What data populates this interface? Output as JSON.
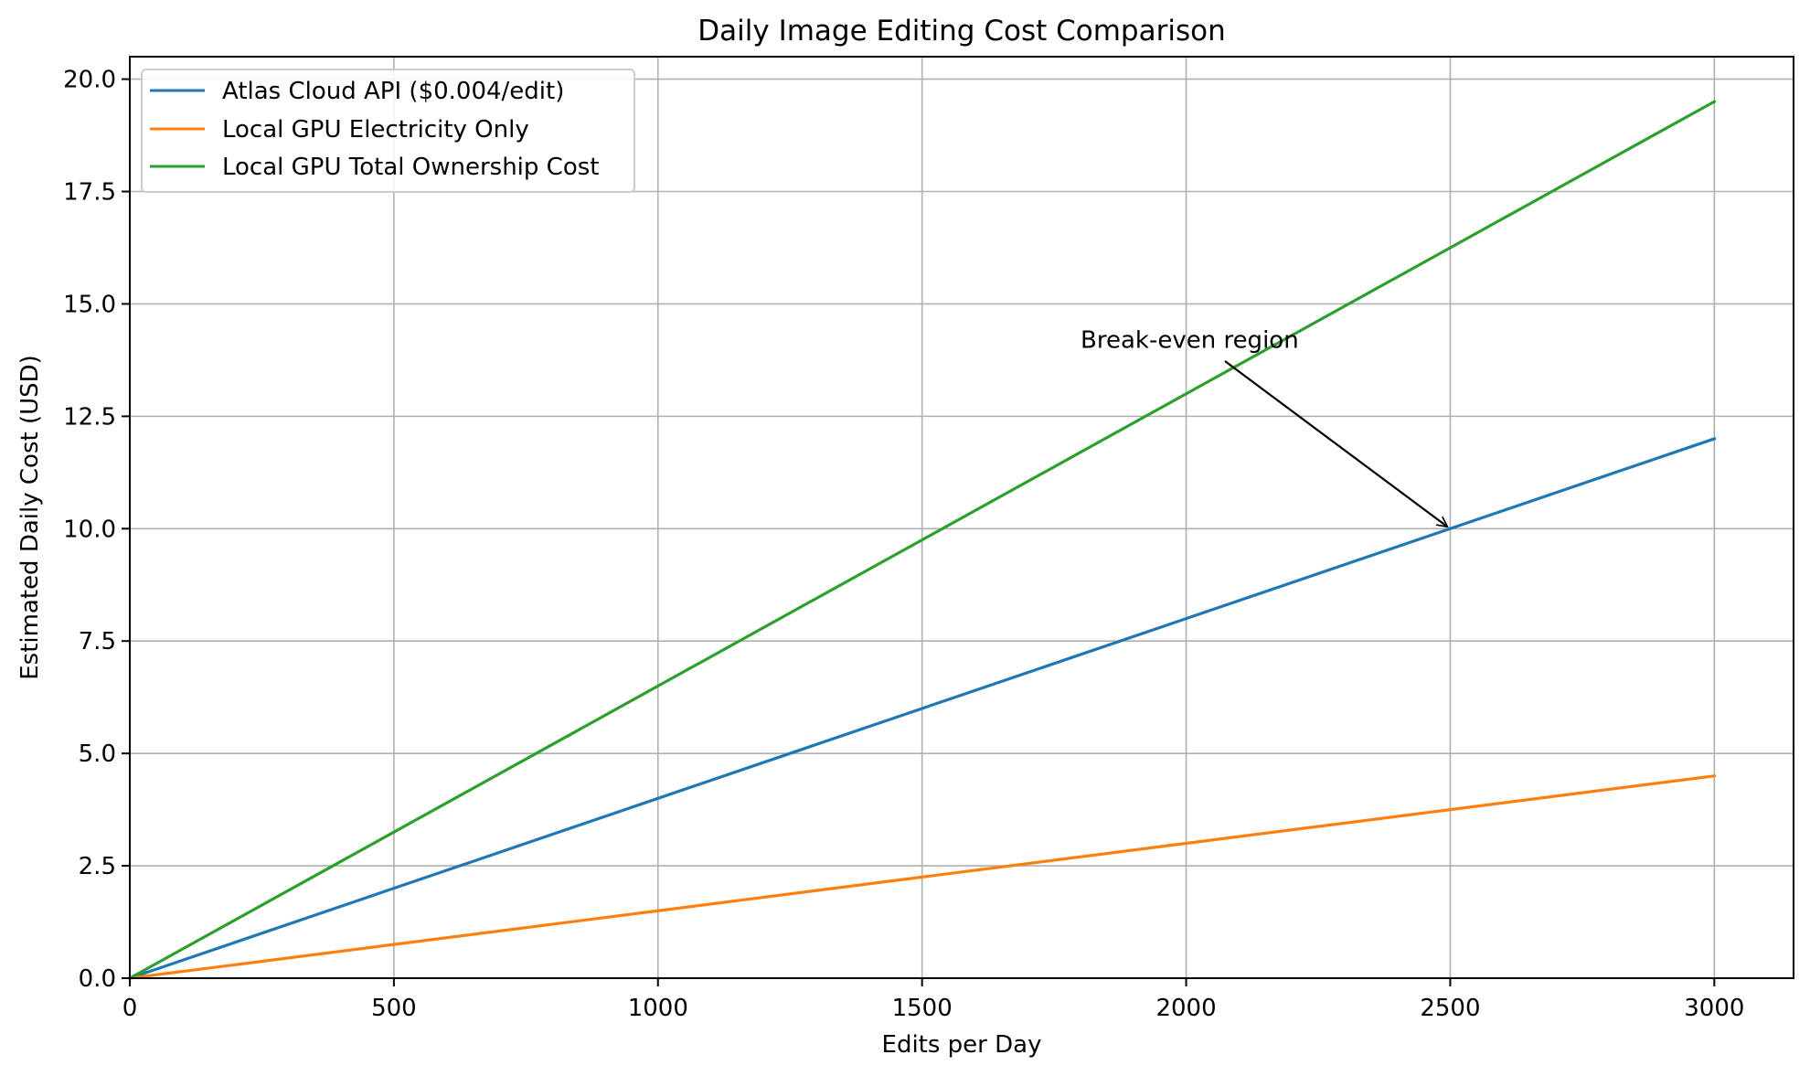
{
  "chart_data": {
    "type": "line",
    "title": "Daily Image Editing Cost Comparison",
    "xlabel": "Edits per Day",
    "ylabel": "Estimated Daily Cost (USD)",
    "xlim": [
      0,
      3150
    ],
    "ylim": [
      0,
      20.5
    ],
    "x_ticks": [
      0,
      500,
      1000,
      1500,
      2000,
      2500,
      3000
    ],
    "y_ticks": [
      0.0,
      2.5,
      5.0,
      7.5,
      10.0,
      12.5,
      15.0,
      17.5,
      20.0
    ],
    "x_tick_labels": [
      "0",
      "500",
      "1000",
      "1500",
      "2000",
      "2500",
      "3000"
    ],
    "y_tick_labels": [
      "0.0",
      "2.5",
      "5.0",
      "7.5",
      "10.0",
      "12.5",
      "15.0",
      "17.5",
      "20.0"
    ],
    "grid": true,
    "legend_position": "upper-left",
    "series": [
      {
        "name": "Atlas Cloud API ($0.004/edit)",
        "color": "#1f77b4",
        "x": [
          0,
          500,
          1000,
          1500,
          2000,
          2500,
          3000
        ],
        "y": [
          0,
          2.0,
          4.0,
          6.0,
          8.0,
          10.0,
          12.0
        ]
      },
      {
        "name": "Local GPU Electricity Only",
        "color": "#ff7f0e",
        "x": [
          0,
          500,
          1000,
          1500,
          2000,
          2500,
          3000
        ],
        "y": [
          0,
          0.75,
          1.5,
          2.25,
          3.0,
          3.75,
          4.5
        ]
      },
      {
        "name": "Local GPU Total Ownership Cost",
        "color": "#2ca02c",
        "x": [
          0,
          500,
          1000,
          1500,
          2000,
          2500,
          3000
        ],
        "y": [
          0,
          3.25,
          6.5,
          9.75,
          13.0,
          16.25,
          19.5
        ]
      }
    ],
    "annotations": [
      {
        "text": "Break-even region",
        "xy": [
          2500,
          10.0
        ],
        "xytext": [
          1800,
          14.0
        ]
      }
    ]
  }
}
